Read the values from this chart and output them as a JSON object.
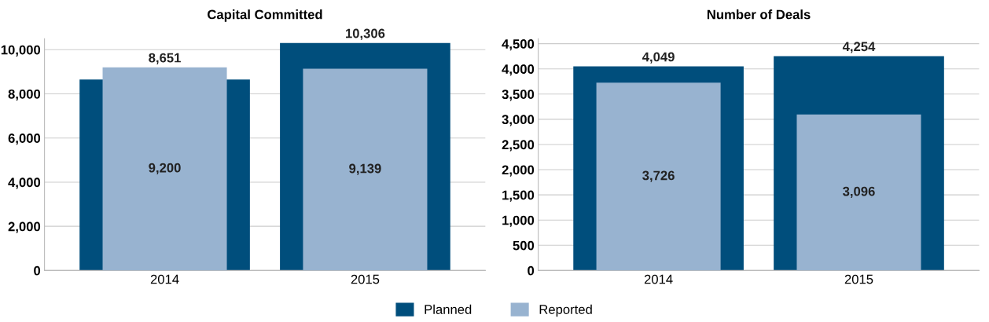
{
  "chart_data": [
    {
      "type": "bar",
      "title": "Capital Committed",
      "categories": [
        "2014",
        "2015"
      ],
      "series": [
        {
          "name": "Planned",
          "color": "#004e7c",
          "values": [
            8651,
            10306
          ],
          "value_labels": [
            "8,651",
            "10,306"
          ]
        },
        {
          "name": "Reported",
          "color": "#98b3d0",
          "values": [
            9200,
            9139
          ],
          "value_labels": [
            "9,200",
            "9,139"
          ]
        }
      ],
      "ylim": [
        0,
        10500
      ],
      "yticks": [
        0,
        {
          "value": 2000,
          "label": "2,000"
        },
        {
          "value": 4000,
          "label": "4,000"
        },
        {
          "value": 6000,
          "label": "6,000"
        },
        {
          "value": 8000,
          "label": "8,000"
        },
        {
          "value": 10000,
          "label": "10,000"
        }
      ],
      "grid": "y",
      "legend": "bottom"
    },
    {
      "type": "bar",
      "title": "Number of Deals",
      "categories": [
        "2014",
        "2015"
      ],
      "series": [
        {
          "name": "Planned",
          "color": "#004e7c",
          "values": [
            4049,
            4254
          ],
          "value_labels": [
            "4,049",
            "4,254"
          ]
        },
        {
          "name": "Reported",
          "color": "#98b3d0",
          "values": [
            3726,
            3096
          ],
          "value_labels": [
            "3,726",
            "3,096"
          ]
        }
      ],
      "ylim": [
        0,
        4600
      ],
      "yticks": [
        0,
        500,
        {
          "value": 1000,
          "label": "1,000"
        },
        {
          "value": 1500,
          "label": "1,500"
        },
        {
          "value": 2000,
          "label": "2,000"
        },
        {
          "value": 2500,
          "label": "2,500"
        },
        {
          "value": 3000,
          "label": "3,000"
        },
        {
          "value": 3500,
          "label": "3,500"
        },
        {
          "value": 4000,
          "label": "4,000"
        },
        {
          "value": 4500,
          "label": "4,500"
        }
      ],
      "grid": "y",
      "legend": "bottom"
    }
  ]
}
